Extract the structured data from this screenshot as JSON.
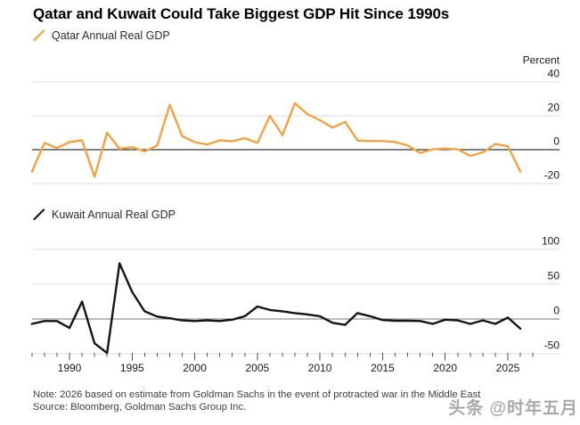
{
  "title": "Qatar and Kuwait Could Take Biggest GDP Hit Since 1990s",
  "chart_data": [
    {
      "type": "line",
      "legend": "Qatar Annual Real GDP",
      "axis_title": "Percent",
      "line_color": "#EFA344",
      "x": [
        1987,
        1988,
        1989,
        1990,
        1991,
        1992,
        1993,
        1994,
        1995,
        1996,
        1997,
        1998,
        1999,
        2000,
        2001,
        2002,
        2003,
        2004,
        2005,
        2006,
        2007,
        2008,
        2009,
        2010,
        2011,
        2012,
        2013,
        2014,
        2015,
        2016,
        2017,
        2018,
        2019,
        2020,
        2021,
        2022,
        2023,
        2024,
        2025,
        2026
      ],
      "values": [
        -13,
        4,
        1,
        4.5,
        5.5,
        -16,
        10,
        0.5,
        1.5,
        -1,
        2.5,
        26.5,
        8,
        4.5,
        3,
        5.5,
        5,
        6.8,
        4,
        20,
        8.6,
        27.5,
        21,
        17.4,
        13,
        16.5,
        5.4,
        5.1,
        5.1,
        4.6,
        2.5,
        -1.9,
        0.2,
        0.7,
        0.2,
        -3.7,
        -1.6,
        3.3,
        2,
        -13
      ],
      "yticks": [
        40,
        20,
        0,
        -20
      ],
      "ylim": [
        -28,
        46
      ],
      "grid": "horizontal",
      "legend_position": "top-left"
    },
    {
      "type": "line",
      "legend": "Kuwait Annual Real GDP",
      "axis_title": "",
      "line_color": "#141414",
      "x": [
        1987,
        1988,
        1989,
        1990,
        1991,
        1992,
        1993,
        1994,
        1995,
        1996,
        1997,
        1998,
        1999,
        2000,
        2001,
        2002,
        2003,
        2004,
        2005,
        2006,
        2007,
        2008,
        2009,
        2010,
        2011,
        2012,
        2013,
        2014,
        2015,
        2016,
        2017,
        2018,
        2019,
        2020,
        2021,
        2022,
        2023,
        2024,
        2025,
        2026
      ],
      "values": [
        -7,
        -3,
        -3,
        -13,
        25,
        -35,
        -49,
        80,
        39,
        11,
        3.5,
        1,
        -2,
        -3,
        -2,
        -3,
        -1,
        4,
        18,
        13,
        11,
        8.5,
        6.5,
        4,
        -5.5,
        -8.5,
        8.5,
        4,
        -1.5,
        -2.5,
        -2.5,
        -3,
        -7,
        -1,
        -2,
        -7,
        -2,
        -7,
        2,
        -14
      ],
      "yticks": [
        100,
        50,
        0,
        -50
      ],
      "ylim": [
        -62,
        112
      ],
      "grid": "horizontal",
      "legend_position": "top-left",
      "xtick_labels": [
        1990,
        1995,
        2000,
        2005,
        2010,
        2015,
        2020,
        2025
      ],
      "xtick_minor_range": [
        1987,
        2027
      ]
    }
  ],
  "footer": {
    "note": "Note: 2026 based on estimate from Goldman Sachs in the event of protracted war in the Middle East",
    "source": "Source: Bloomberg, Goldman Sachs Group Inc."
  },
  "watermark": "头条 @时年五月"
}
